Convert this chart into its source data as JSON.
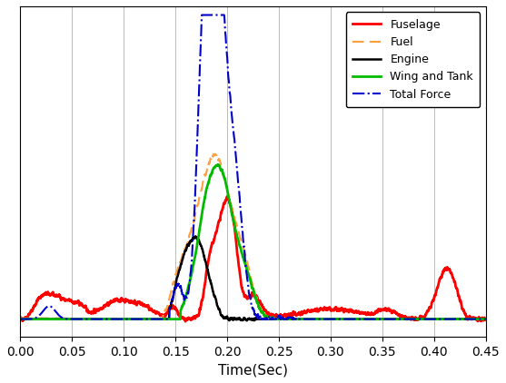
{
  "title": "",
  "xlabel": "Time(Sec)",
  "ylabel": "",
  "xlim": [
    0,
    0.45
  ],
  "xticks": [
    0,
    0.05,
    0.1,
    0.15,
    0.2,
    0.25,
    0.3,
    0.35,
    0.4,
    0.45
  ],
  "legend_entries": [
    "Fuselage",
    "Fuel",
    "Engine",
    "Wing and Tank",
    "Total Force"
  ],
  "fuselage_color": "#ff0000",
  "fuel_color": "#ffa040",
  "engine_color": "#000000",
  "wing_color": "#00bb00",
  "total_color": "#0000cc",
  "background_color": "#ffffff",
  "grid_color": "#bbbbbb",
  "figsize": [
    5.57,
    4.22
  ],
  "dpi": 100
}
